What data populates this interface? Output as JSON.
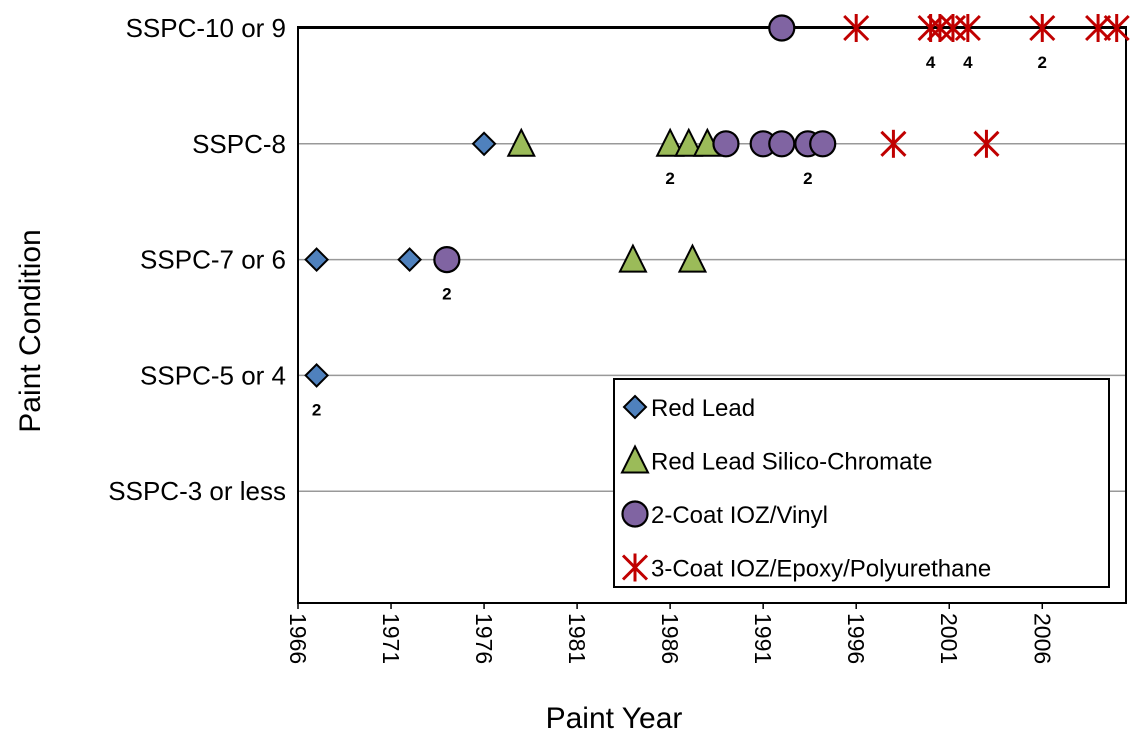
{
  "chart_data": {
    "type": "scatter",
    "xlabel": "Paint Year",
    "ylabel": "Paint Condition",
    "xlim": [
      1966,
      2010.5
    ],
    "x_ticks": [
      "1966",
      "1971",
      "1976",
      "1981",
      "1986",
      "1991",
      "1996",
      "2001",
      "2006"
    ],
    "y_categories": [
      "SSPC-3 or less",
      "SSPC-5 or 4",
      "SSPC-7 or 6",
      "SSPC-8",
      "SSPC-10 or 9"
    ],
    "legend_position": "bottom-right",
    "grid": true,
    "series": [
      {
        "name": "Red Lead",
        "marker": "diamond",
        "color": "#4f81bd",
        "points": [
          {
            "x": 1967,
            "y": "SSPC-10 or 9",
            "skip": true
          },
          {
            "x": 1976,
            "y": "SSPC-8"
          },
          {
            "x": 1967,
            "y": "SSPC-7 or 6"
          },
          {
            "x": 1972,
            "y": "SSPC-7 or 6"
          },
          {
            "x": 1967,
            "y": "SSPC-5 or 4",
            "count": "2"
          }
        ]
      },
      {
        "name": "Red Lead Silico-Chromate",
        "marker": "triangle",
        "color": "#9bbb59",
        "points": [
          {
            "x": 1978,
            "y": "SSPC-8"
          },
          {
            "x": 1986,
            "y": "SSPC-8",
            "count": "2"
          },
          {
            "x": 1987,
            "y": "SSPC-8"
          },
          {
            "x": 1988,
            "y": "SSPC-8"
          },
          {
            "x": 1984,
            "y": "SSPC-7 or 6"
          },
          {
            "x": 1987.2,
            "y": "SSPC-7 or 6"
          }
        ]
      },
      {
        "name": "2-Coat IOZ/Vinyl",
        "marker": "circle",
        "color": "#8064a2",
        "points": [
          {
            "x": 1992,
            "y": "SSPC-10 or 9"
          },
          {
            "x": 1989,
            "y": "SSPC-8"
          },
          {
            "x": 1991,
            "y": "SSPC-8"
          },
          {
            "x": 1992,
            "y": "SSPC-8"
          },
          {
            "x": 1993.4,
            "y": "SSPC-8",
            "count": "2"
          },
          {
            "x": 1994.2,
            "y": "SSPC-8"
          },
          {
            "x": 1974,
            "y": "SSPC-7 or 6",
            "count": "2"
          }
        ]
      },
      {
        "name": "3-Coat IOZ/Epoxy/Polyurethane",
        "marker": "asterisk",
        "color": "#c00000",
        "points": [
          {
            "x": 1996,
            "y": "SSPC-10 or 9"
          },
          {
            "x": 2000,
            "y": "SSPC-10 or 9",
            "count": "4"
          },
          {
            "x": 2000.5,
            "y": "SSPC-10 or 9"
          },
          {
            "x": 2001.2,
            "y": "SSPC-10 or 9"
          },
          {
            "x": 2002,
            "y": "SSPC-10 or 9",
            "count": "4"
          },
          {
            "x": 2006,
            "y": "SSPC-10 or 9",
            "count": "2"
          },
          {
            "x": 2009,
            "y": "SSPC-10 or 9"
          },
          {
            "x": 2010,
            "y": "SSPC-10 or 9"
          },
          {
            "x": 1998,
            "y": "SSPC-8"
          },
          {
            "x": 2003,
            "y": "SSPC-8"
          }
        ]
      }
    ]
  }
}
